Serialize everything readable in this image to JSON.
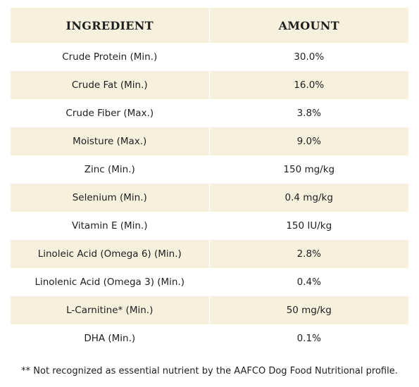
{
  "table": {
    "headers": {
      "ingredient": "INGREDIENT",
      "amount": "AMOUNT"
    },
    "rows": [
      {
        "ingredient": "Crude Protein (Min.)",
        "amount": "30.0%"
      },
      {
        "ingredient": "Crude Fat (Min.)",
        "amount": "16.0%"
      },
      {
        "ingredient": "Crude Fiber (Max.)",
        "amount": "3.8%"
      },
      {
        "ingredient": "Moisture (Max.)",
        "amount": "9.0%"
      },
      {
        "ingredient": "Zinc (Min.)",
        "amount": "150 mg/kg"
      },
      {
        "ingredient": "Selenium (Min.)",
        "amount": "0.4 mg/kg"
      },
      {
        "ingredient": "Vitamin E (Min.)",
        "amount": "150 IU/kg"
      },
      {
        "ingredient": "Linoleic Acid (Omega 6) (Min.)",
        "amount": "2.8%"
      },
      {
        "ingredient": "Linolenic Acid (Omega 3) (Min.)",
        "amount": "0.4%"
      },
      {
        "ingredient": "L-Carnitine* (Min.)",
        "amount": "50 mg/kg"
      },
      {
        "ingredient": "DHA (Min.)",
        "amount": "0.1%"
      }
    ]
  },
  "footnote": "** Not recognized as essential nutrient by the AAFCO Dog Food Nutritional profile.",
  "colors": {
    "shaded_row": "#f6f0dc",
    "text": "#1e1e1e"
  }
}
